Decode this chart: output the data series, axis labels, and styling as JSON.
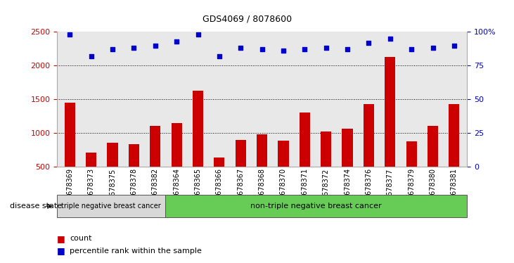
{
  "title": "GDS4069 / 8078600",
  "samples": [
    "GSM678369",
    "GSM678373",
    "GSM678375",
    "GSM678378",
    "GSM678382",
    "GSM678364",
    "GSM678365",
    "GSM678366",
    "GSM678367",
    "GSM678368",
    "GSM678370",
    "GSM678371",
    "GSM678372",
    "GSM678374",
    "GSM678376",
    "GSM678377",
    "GSM678379",
    "GSM678380",
    "GSM678381"
  ],
  "counts": [
    1450,
    700,
    850,
    830,
    1100,
    1140,
    1630,
    630,
    890,
    980,
    880,
    1300,
    1020,
    1060,
    1430,
    2130,
    870,
    1100,
    1430
  ],
  "percentile_ranks": [
    98,
    82,
    87,
    88,
    90,
    93,
    98,
    82,
    88,
    87,
    86,
    87,
    88,
    87,
    92,
    95,
    87,
    88,
    90
  ],
  "group1_count": 5,
  "group1_label": "triple negative breast cancer",
  "group2_label": "non-triple negative breast cancer",
  "bar_color": "#cc0000",
  "dot_color": "#0000cc",
  "ylim_left": [
    500,
    2500
  ],
  "ylim_right": [
    0,
    100
  ],
  "yticks_left": [
    500,
    1000,
    1500,
    2000,
    2500
  ],
  "yticks_right": [
    0,
    25,
    50,
    75,
    100
  ],
  "ytick_labels_right": [
    "0",
    "25",
    "50",
    "75",
    "100%"
  ],
  "grid_values": [
    1000,
    1500,
    2000
  ],
  "legend_count": "count",
  "legend_pct": "percentile rank within the sample",
  "disease_state_label": "disease state",
  "background_color": "#ffffff",
  "plot_bg_color": "#e8e8e8"
}
